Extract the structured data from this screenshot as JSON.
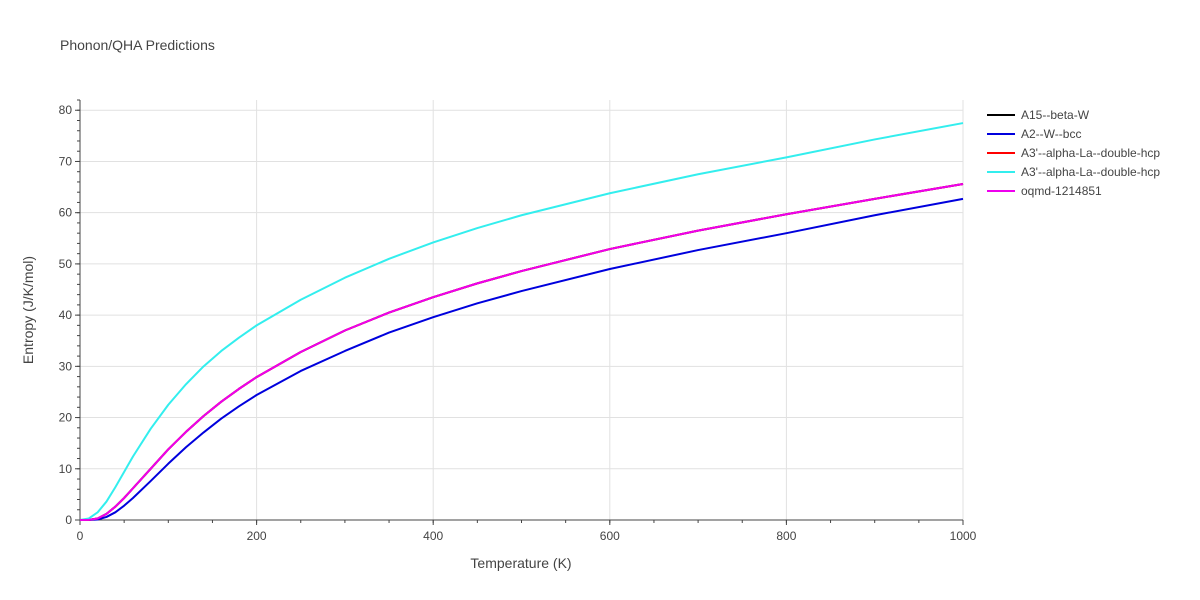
{
  "chart_data": {
    "type": "line",
    "title": "Phonon/QHA Predictions",
    "xlabel": "Temperature (K)",
    "ylabel": "Entropy (J/K/mol)",
    "xlim": [
      0,
      1000
    ],
    "ylim": [
      0,
      82
    ],
    "xticks": [
      0,
      200,
      400,
      600,
      800,
      1000
    ],
    "yticks": [
      0,
      10,
      20,
      30,
      40,
      50,
      60,
      70,
      80
    ],
    "grid": true,
    "legend_position": "right",
    "series": [
      {
        "name": "A15--beta-W",
        "color": "#000000",
        "x": [
          0,
          10,
          20,
          30,
          40,
          50,
          60,
          80,
          100,
          120,
          140,
          160,
          180,
          200,
          250,
          300,
          350,
          400,
          450,
          500,
          600,
          700,
          800,
          900,
          1000
        ],
        "y": [
          0,
          0.02,
          0.3,
          1.2,
          2.6,
          4.3,
          6.2,
          10.0,
          13.8,
          17.2,
          20.3,
          23.1,
          25.6,
          27.9,
          32.8,
          37.0,
          40.5,
          43.5,
          46.2,
          48.6,
          52.9,
          56.5,
          59.7,
          62.7,
          65.6
        ]
      },
      {
        "name": "A2--W--bcc",
        "color": "#0000dd",
        "x": [
          0,
          10,
          20,
          30,
          40,
          50,
          60,
          80,
          100,
          120,
          140,
          160,
          180,
          200,
          250,
          300,
          350,
          400,
          450,
          500,
          600,
          700,
          800,
          900,
          1000
        ],
        "y": [
          0,
          0.01,
          0.1,
          0.6,
          1.5,
          2.8,
          4.3,
          7.6,
          11.0,
          14.2,
          17.1,
          19.8,
          22.2,
          24.4,
          29.1,
          33.0,
          36.6,
          39.6,
          42.3,
          44.7,
          49.0,
          52.7,
          56.0,
          59.5,
          62.7
        ]
      },
      {
        "name": "A3'--alpha-La--double-hcp",
        "color": "#ff0000",
        "x": [
          0,
          10,
          20,
          30,
          40,
          50,
          60,
          80,
          100,
          120,
          140,
          160,
          180,
          200,
          250,
          300,
          350,
          400,
          450,
          500,
          600,
          700,
          800,
          900,
          1000
        ],
        "y": [
          0,
          0.02,
          0.3,
          1.2,
          2.6,
          4.3,
          6.2,
          10.0,
          13.8,
          17.2,
          20.3,
          23.1,
          25.6,
          27.9,
          32.8,
          37.0,
          40.5,
          43.5,
          46.2,
          48.6,
          52.9,
          56.5,
          59.7,
          62.7,
          65.6
        ]
      },
      {
        "name": "A3'--alpha-La--double-hcp",
        "color": "#33eeee",
        "x": [
          0,
          10,
          20,
          30,
          40,
          50,
          60,
          80,
          100,
          120,
          140,
          160,
          180,
          200,
          250,
          300,
          350,
          400,
          450,
          500,
          600,
          700,
          800,
          900,
          1000
        ],
        "y": [
          0,
          0.3,
          1.5,
          3.6,
          6.4,
          9.4,
          12.4,
          17.8,
          22.5,
          26.5,
          30.0,
          33.0,
          35.6,
          38.0,
          43.0,
          47.3,
          51.0,
          54.2,
          57.0,
          59.5,
          63.8,
          67.5,
          70.8,
          74.3,
          77.5
        ]
      },
      {
        "name": "oqmd-1214851",
        "color": "#ee00ee",
        "x": [
          0,
          10,
          20,
          30,
          40,
          50,
          60,
          80,
          100,
          120,
          140,
          160,
          180,
          200,
          250,
          300,
          350,
          400,
          450,
          500,
          600,
          700,
          800,
          900,
          1000
        ],
        "y": [
          0,
          0.02,
          0.3,
          1.2,
          2.6,
          4.3,
          6.2,
          10.0,
          13.8,
          17.2,
          20.3,
          23.1,
          25.6,
          27.9,
          32.8,
          37.0,
          40.5,
          43.5,
          46.2,
          48.6,
          52.9,
          56.5,
          59.7,
          62.7,
          65.6
        ]
      }
    ]
  }
}
